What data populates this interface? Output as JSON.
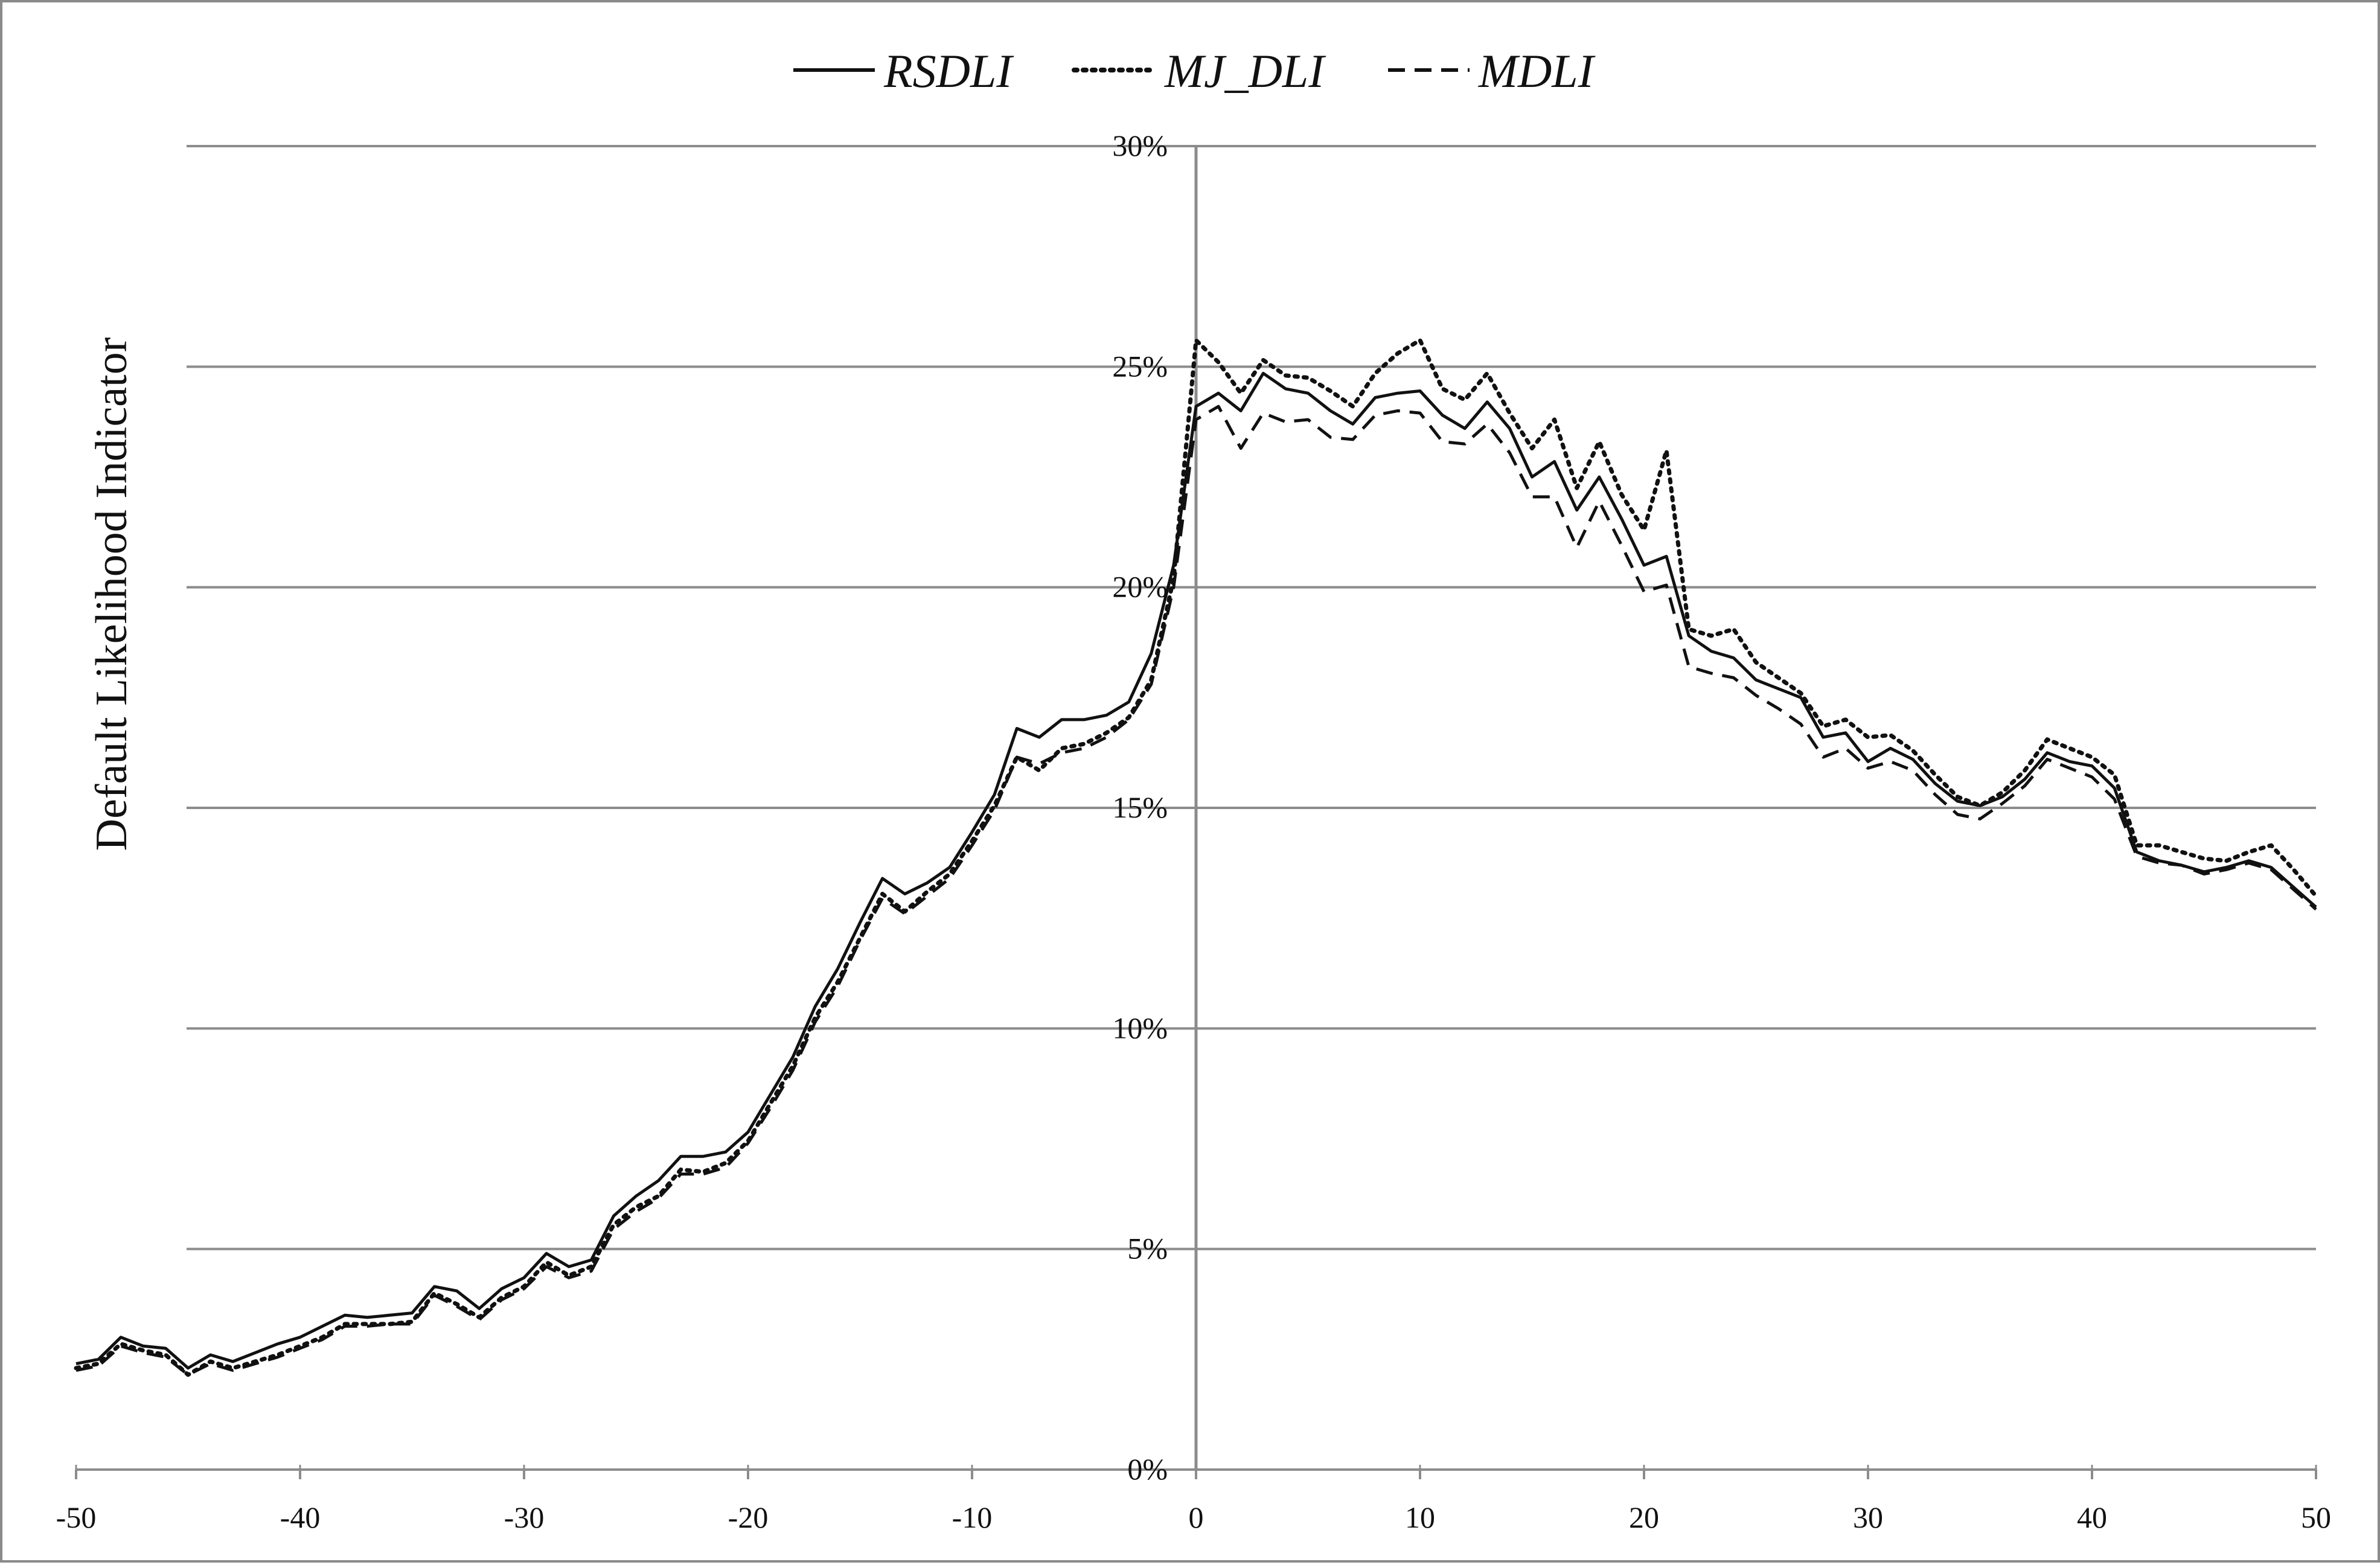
{
  "chart_data": {
    "type": "line",
    "title": "",
    "xlabel": "",
    "ylabel": "Default Likelihood Indicator",
    "xlim": [
      -50,
      50
    ],
    "ylim": [
      0,
      30
    ],
    "x_ticks": [
      "-50",
      "-40",
      "-30",
      "-20",
      "-10",
      "0",
      "10",
      "20",
      "30",
      "40",
      "50"
    ],
    "y_ticks": [
      "0%",
      "5%",
      "10%",
      "15%",
      "20%",
      "25%",
      "30%"
    ],
    "grid": "horizontal",
    "legend_position": "top",
    "x": [
      -50,
      -49,
      -48,
      -47,
      -46,
      -45,
      -44,
      -43,
      -42,
      -41,
      -40,
      -39,
      -38,
      -37,
      -36,
      -35,
      -34,
      -33,
      -32,
      -31,
      -30,
      -29,
      -28,
      -27,
      -26,
      -25,
      -24,
      -23,
      -22,
      -21,
      -20,
      -19,
      -18,
      -17,
      -16,
      -15,
      -14,
      -13,
      -12,
      -11,
      -10,
      -9,
      -8,
      -7,
      -6,
      -5,
      -4,
      -3,
      -2,
      -1,
      0,
      1,
      2,
      3,
      4,
      5,
      6,
      7,
      8,
      9,
      10,
      11,
      12,
      13,
      14,
      15,
      16,
      17,
      18,
      19,
      20,
      21,
      22,
      23,
      24,
      25,
      26,
      27,
      28,
      29,
      30,
      31,
      32,
      33,
      34,
      35,
      36,
      37,
      38,
      39,
      40,
      41,
      42,
      43,
      44,
      45,
      46,
      47,
      48,
      49,
      50
    ],
    "series": [
      {
        "name": "RSDLI",
        "style": "solid",
        "color": "#111111",
        "values": [
          2.4,
          2.5,
          3.0,
          2.8,
          2.75,
          2.3,
          2.6,
          2.45,
          2.65,
          2.85,
          3.0,
          3.25,
          3.5,
          3.45,
          3.5,
          3.55,
          4.15,
          4.05,
          3.65,
          4.1,
          4.35,
          4.9,
          4.6,
          4.75,
          5.75,
          6.2,
          6.55,
          7.1,
          7.1,
          7.2,
          7.65,
          8.5,
          9.35,
          10.5,
          11.35,
          12.4,
          13.4,
          13.05,
          13.3,
          13.65,
          14.45,
          15.3,
          16.8,
          16.6,
          17.0,
          17.0,
          17.1,
          17.4,
          18.5,
          20.5,
          24.1,
          24.4,
          24.0,
          24.85,
          24.5,
          24.4,
          24.0,
          23.7,
          24.3,
          24.4,
          24.45,
          23.9,
          23.6,
          24.2,
          23.6,
          22.5,
          22.85,
          21.75,
          22.5,
          21.55,
          20.5,
          20.7,
          18.9,
          18.55,
          18.4,
          17.9,
          17.7,
          17.5,
          16.6,
          16.7,
          16.05,
          16.35,
          16.1,
          15.55,
          15.15,
          15.05,
          15.25,
          15.65,
          16.25,
          16.05,
          15.95,
          15.45,
          14.0,
          13.8,
          13.7,
          13.55,
          13.65,
          13.8,
          13.65,
          13.2,
          12.75
        ]
      },
      {
        "name": "MJ_DLI",
        "style": "dotted",
        "color": "#111111",
        "values": [
          2.3,
          2.4,
          2.85,
          2.7,
          2.6,
          2.15,
          2.45,
          2.3,
          2.45,
          2.6,
          2.8,
          3.0,
          3.3,
          3.3,
          3.3,
          3.35,
          4.0,
          3.75,
          3.45,
          3.9,
          4.15,
          4.7,
          4.4,
          4.6,
          5.55,
          5.95,
          6.2,
          6.8,
          6.75,
          6.95,
          7.45,
          8.3,
          9.15,
          10.25,
          11.05,
          12.05,
          13.05,
          12.65,
          13.1,
          13.5,
          14.25,
          15.05,
          16.15,
          15.85,
          16.35,
          16.45,
          16.7,
          17.05,
          17.9,
          20.2,
          25.6,
          25.1,
          24.4,
          25.15,
          24.8,
          24.75,
          24.45,
          24.1,
          24.85,
          25.3,
          25.6,
          24.5,
          24.25,
          24.85,
          23.95,
          23.15,
          23.8,
          22.25,
          23.3,
          22.1,
          21.3,
          23.1,
          19.05,
          18.9,
          19.05,
          18.3,
          17.95,
          17.6,
          16.85,
          17.0,
          16.6,
          16.65,
          16.3,
          15.75,
          15.25,
          15.05,
          15.35,
          15.85,
          16.55,
          16.35,
          16.15,
          15.75,
          14.15,
          14.15,
          14.0,
          13.85,
          13.8,
          14.0,
          14.15,
          13.6,
          13.0
        ]
      },
      {
        "name": "MDLI",
        "style": "dashed",
        "color": "#111111",
        "values": [
          2.25,
          2.35,
          2.8,
          2.65,
          2.55,
          2.15,
          2.4,
          2.25,
          2.4,
          2.55,
          2.75,
          2.95,
          3.25,
          3.25,
          3.3,
          3.3,
          3.95,
          3.7,
          3.4,
          3.85,
          4.1,
          4.6,
          4.35,
          4.5,
          5.45,
          5.85,
          6.15,
          6.7,
          6.7,
          6.85,
          7.4,
          8.2,
          9.05,
          10.15,
          10.95,
          12.0,
          12.95,
          12.6,
          13.0,
          13.4,
          14.15,
          14.95,
          16.15,
          16.0,
          16.25,
          16.35,
          16.6,
          17.0,
          17.8,
          20.0,
          23.8,
          24.1,
          23.15,
          23.95,
          23.75,
          23.8,
          23.4,
          23.35,
          23.9,
          24.0,
          23.95,
          23.3,
          23.25,
          23.7,
          23.05,
          22.05,
          22.05,
          20.9,
          21.95,
          20.95,
          19.9,
          20.05,
          18.2,
          18.05,
          17.95,
          17.55,
          17.25,
          16.9,
          16.15,
          16.35,
          15.9,
          16.05,
          15.85,
          15.3,
          14.85,
          14.75,
          15.1,
          15.5,
          16.1,
          15.9,
          15.7,
          15.2,
          13.9,
          13.75,
          13.7,
          13.5,
          13.6,
          13.75,
          13.6,
          13.15,
          12.7
        ]
      }
    ]
  }
}
